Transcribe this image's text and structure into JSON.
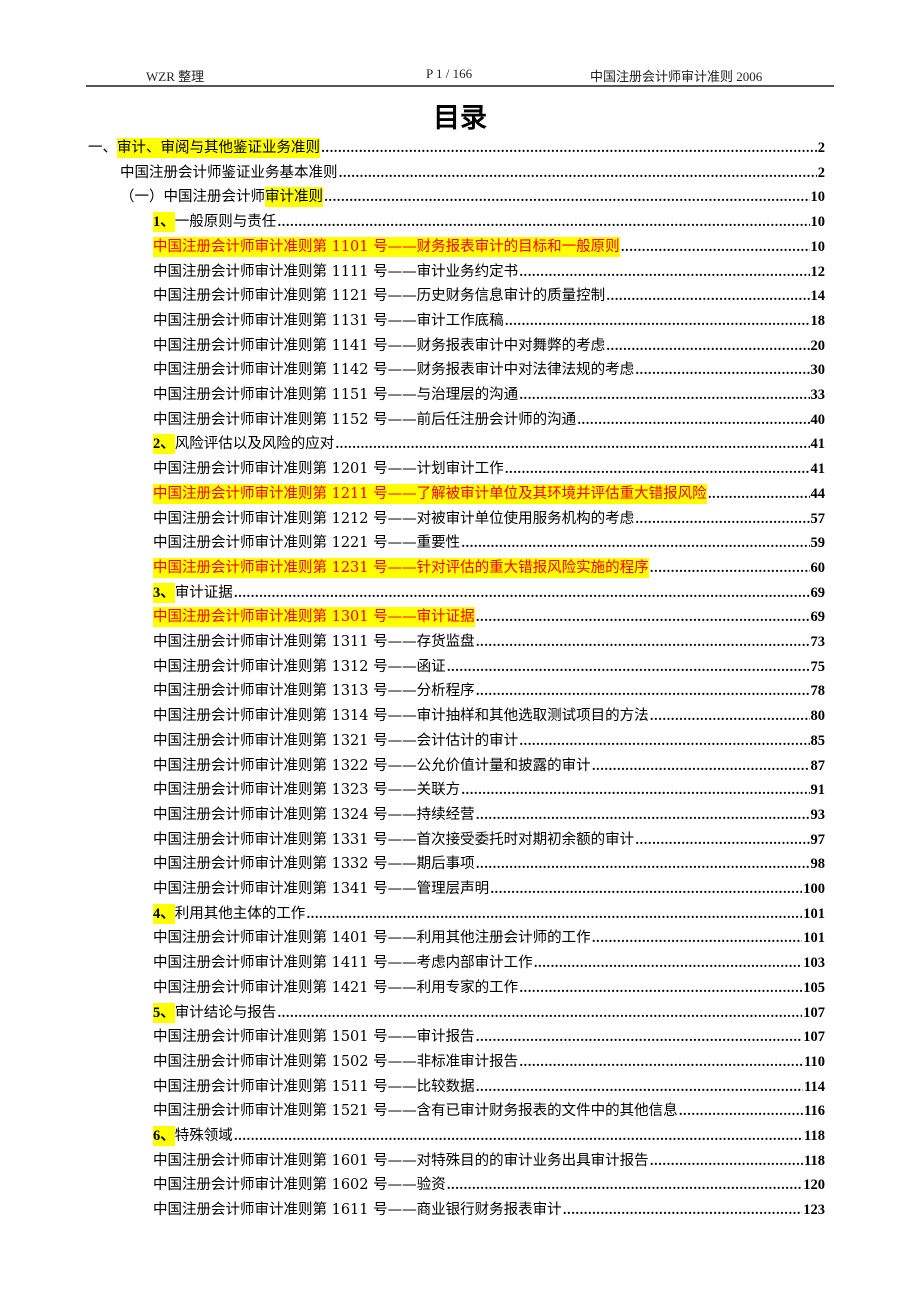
{
  "header": {
    "left": "WZR 整理",
    "center": "P 1 / 166",
    "right": "中国注册会计师审计准则 2006"
  },
  "title": "目录",
  "toc": [
    {
      "level": 0,
      "segments": [
        {
          "text": "一、"
        },
        {
          "text": "审计、审阅与其他鉴证业务准则",
          "highlight": true
        }
      ],
      "page": "2"
    },
    {
      "level": 1,
      "segments": [
        {
          "text": "中国注册会计师鉴证业务基本准则"
        }
      ],
      "page": "2"
    },
    {
      "level": 1,
      "segments": [
        {
          "text": "（一）中国注册会计师"
        },
        {
          "text": "审计准则",
          "highlight": true
        }
      ],
      "page": "10"
    },
    {
      "level": 2,
      "segments": [
        {
          "text": "1、",
          "highlight": true,
          "num": true
        },
        {
          "text": "一般原则与责任"
        }
      ],
      "page": "10"
    },
    {
      "level": 2,
      "red": true,
      "segments": [
        {
          "text": "中国注册会计师审计准则第 1101 号——财务报表审计的目标和一般原则",
          "highlight": true
        }
      ],
      "page": "10"
    },
    {
      "level": 2,
      "segments": [
        {
          "text": "中国注册会计师审计准则第 1111 号——审计业务约定书"
        }
      ],
      "page": "12"
    },
    {
      "level": 2,
      "segments": [
        {
          "text": "中国注册会计师审计准则第 1121 号——历史财务信息审计的质量控制"
        }
      ],
      "page": "14"
    },
    {
      "level": 2,
      "segments": [
        {
          "text": "中国注册会计师审计准则第 1131 号——审计工作底稿"
        }
      ],
      "page": "18"
    },
    {
      "level": 2,
      "segments": [
        {
          "text": "中国注册会计师审计准则第 1141 号——财务报表审计中对舞弊的考虑"
        }
      ],
      "page": "20"
    },
    {
      "level": 2,
      "segments": [
        {
          "text": "中国注册会计师审计准则第 1142 号——财务报表审计中对法律法规的考虑"
        }
      ],
      "page": "30"
    },
    {
      "level": 2,
      "segments": [
        {
          "text": "中国注册会计师审计准则第 1151 号——与治理层的沟通"
        }
      ],
      "page": "33"
    },
    {
      "level": 2,
      "segments": [
        {
          "text": "中国注册会计师审计准则第 1152 号——前后任注册会计师的沟通"
        }
      ],
      "page": "40"
    },
    {
      "level": 2,
      "segments": [
        {
          "text": "2、",
          "highlight": true,
          "num": true
        },
        {
          "text": "风险评估以及风险的应对"
        }
      ],
      "page": "41"
    },
    {
      "level": 2,
      "segments": [
        {
          "text": "中国注册会计师审计准则第 1201 号——计划审计工作"
        }
      ],
      "page": "41"
    },
    {
      "level": 2,
      "red": true,
      "segments": [
        {
          "text": "中国注册会计师审计准则第 1211 号——了解被审计单位及其环境并评估重大错报风险",
          "highlight": true
        }
      ],
      "page": "44"
    },
    {
      "level": 2,
      "segments": [
        {
          "text": "中国注册会计师审计准则第 1212 号——对被审计单位使用服务机构的考虑"
        }
      ],
      "page": "57"
    },
    {
      "level": 2,
      "segments": [
        {
          "text": "中国注册会计师审计准则第 1221 号——重要性"
        }
      ],
      "page": "59"
    },
    {
      "level": 2,
      "red": true,
      "segments": [
        {
          "text": "中国注册会计师审计准则第 1231 号——针对评估的重大错报风险实施的程序",
          "highlight": true
        }
      ],
      "page": "60"
    },
    {
      "level": 2,
      "segments": [
        {
          "text": "3、",
          "highlight": true,
          "num": true
        },
        {
          "text": "审计证据"
        }
      ],
      "page": "69"
    },
    {
      "level": 2,
      "red": true,
      "segments": [
        {
          "text": "中国注册会计师审计准则第 1301 号——审计证据",
          "highlight": true
        }
      ],
      "page": "69"
    },
    {
      "level": 2,
      "segments": [
        {
          "text": "中国注册会计师审计准则第 1311 号——存货监盘"
        }
      ],
      "page": "73"
    },
    {
      "level": 2,
      "segments": [
        {
          "text": "中国注册会计师审计准则第 1312 号——函证"
        }
      ],
      "page": "75"
    },
    {
      "level": 2,
      "segments": [
        {
          "text": "中国注册会计师审计准则第 1313 号——分析程序"
        }
      ],
      "page": "78"
    },
    {
      "level": 2,
      "segments": [
        {
          "text": "中国注册会计师审计准则第 1314 号——审计抽样和其他选取测试项目的方法"
        }
      ],
      "page": "80"
    },
    {
      "level": 2,
      "segments": [
        {
          "text": "中国注册会计师审计准则第 1321 号——会计估计的审计"
        }
      ],
      "page": "85"
    },
    {
      "level": 2,
      "segments": [
        {
          "text": "中国注册会计师审计准则第 1322 号——公允价值计量和披露的审计"
        }
      ],
      "page": "87"
    },
    {
      "level": 2,
      "segments": [
        {
          "text": "中国注册会计师审计准则第 1323 号——关联方"
        }
      ],
      "page": "91"
    },
    {
      "level": 2,
      "segments": [
        {
          "text": "中国注册会计师审计准则第 1324 号——持续经营"
        }
      ],
      "page": "93"
    },
    {
      "level": 2,
      "segments": [
        {
          "text": "中国注册会计师审计准则第 1331 号——首次接受委托时对期初余额的审计"
        }
      ],
      "page": "97"
    },
    {
      "level": 2,
      "segments": [
        {
          "text": "中国注册会计师审计准则第 1332 号——期后事项"
        }
      ],
      "page": "98"
    },
    {
      "level": 2,
      "segments": [
        {
          "text": "中国注册会计师审计准则第 1341 号——管理层声明"
        }
      ],
      "page": "100"
    },
    {
      "level": 2,
      "segments": [
        {
          "text": "4、",
          "highlight": true,
          "num": true
        },
        {
          "text": "利用其他主体的工作"
        }
      ],
      "page": "101"
    },
    {
      "level": 2,
      "segments": [
        {
          "text": "中国注册会计师审计准则第 1401 号——利用其他注册会计师的工作"
        }
      ],
      "page": "101"
    },
    {
      "level": 2,
      "segments": [
        {
          "text": "中国注册会计师审计准则第 1411 号——考虑内部审计工作"
        }
      ],
      "page": "103"
    },
    {
      "level": 2,
      "segments": [
        {
          "text": "中国注册会计师审计准则第 1421 号——利用专家的工作"
        }
      ],
      "page": "105"
    },
    {
      "level": 2,
      "segments": [
        {
          "text": "5、",
          "highlight": true,
          "num": true
        },
        {
          "text": "审计结论与报告"
        }
      ],
      "page": "107"
    },
    {
      "level": 2,
      "segments": [
        {
          "text": "中国注册会计师审计准则第 1501 号——审计报告"
        }
      ],
      "page": "107"
    },
    {
      "level": 2,
      "segments": [
        {
          "text": "中国注册会计师审计准则第 1502 号——非标准审计报告"
        }
      ],
      "page": "110"
    },
    {
      "level": 2,
      "segments": [
        {
          "text": "中国注册会计师审计准则第 1511 号——比较数据"
        }
      ],
      "page": "114"
    },
    {
      "level": 2,
      "segments": [
        {
          "text": "中国注册会计师审计准则第 1521 号——含有已审计财务报表的文件中的其他信息"
        }
      ],
      "page": "116"
    },
    {
      "level": 2,
      "segments": [
        {
          "text": "6、",
          "highlight": true,
          "num": true
        },
        {
          "text": "特殊领域"
        }
      ],
      "page": "118"
    },
    {
      "level": 2,
      "segments": [
        {
          "text": "中国注册会计师审计准则第 1601 号——对特殊目的的审计业务出具审计报告"
        }
      ],
      "page": "118"
    },
    {
      "level": 2,
      "segments": [
        {
          "text": "中国注册会计师审计准则第 1602 号——验资"
        }
      ],
      "page": "120"
    },
    {
      "level": 2,
      "segments": [
        {
          "text": "中国注册会计师审计准则第 1611 号——商业银行财务报表审计"
        }
      ],
      "page": "123"
    }
  ],
  "colors": {
    "highlight": "#ffff00",
    "emphasis_text": "#ff0000"
  }
}
